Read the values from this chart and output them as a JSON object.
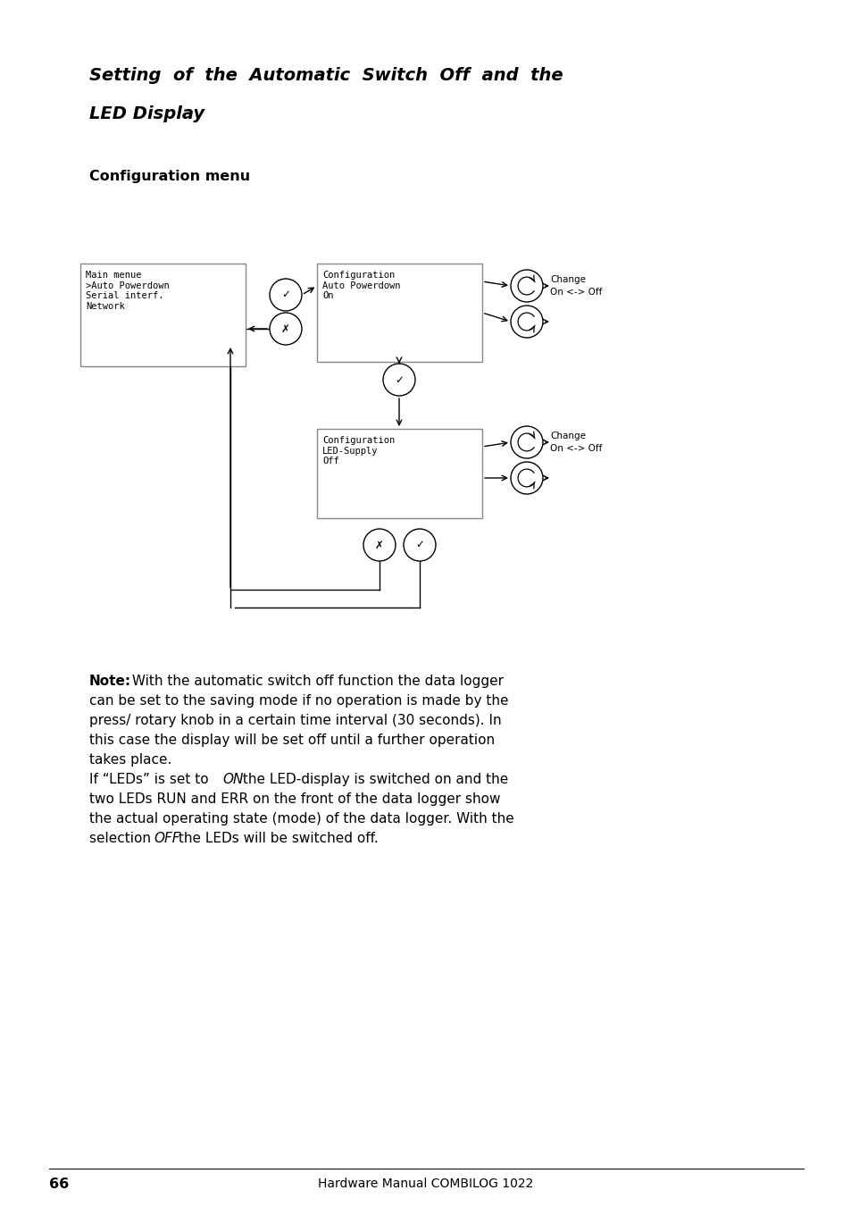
{
  "title_line1": "Setting  of  the  Automatic  Switch  Off  and  the",
  "title_line2": "LED Display",
  "section_label": "Configuration menu",
  "page_number": "66",
  "footer_text": "Hardware Manual COMBILOG 1022",
  "box1_text": "Main menue\n>Auto Powerdown\nSerial interf.\nNetwork",
  "box2_text": "Configuration\nAuto Powerdown\nOn",
  "box3_text": "Configuration\nLED-Supply\nOff",
  "label_change1": "Change\nOn <-> Off",
  "label_change2": "Change\nOn <-> Off",
  "bg_color": "#ffffff"
}
